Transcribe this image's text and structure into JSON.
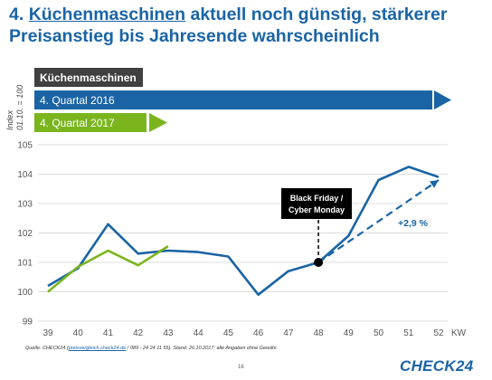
{
  "title": {
    "prefix": "4. ",
    "highlight": "Küchenmaschinen",
    "rest_line1": " aktuell noch günstig, stärkerer",
    "line2": "Preisanstieg bis Jahresende wahrscheinlich"
  },
  "legend": {
    "category_label": "Küchenmaschinen",
    "q4_2016": "4. Quartal 2016",
    "q4_2017": "4. Quartal 2017"
  },
  "colors": {
    "series_2016": "#1a64a5",
    "series_2017": "#7ab51d",
    "category_box": "#404040"
  },
  "annotation": {
    "line1": "Black Friday /",
    "line2": "Cyber Monday",
    "forecast_label": "+2,9 %"
  },
  "footer": {
    "prefix": "Quelle: CHECK24 (",
    "link": "preisvergleich.check24.de",
    "suffix": " / 089 - 24 24 11 55). Stand: 26.10.2017; alle Angaben ohne Gewähr"
  },
  "page_number": "16",
  "logo": "CHECK24",
  "chart_data": {
    "type": "line",
    "ylabel": "Index\n01.10. = 100",
    "xunit": "KW",
    "ylim": [
      99,
      105
    ],
    "yticks": [
      99,
      100,
      101,
      102,
      103,
      104,
      105
    ],
    "x": [
      39,
      40,
      41,
      42,
      43,
      44,
      45,
      46,
      47,
      48,
      49,
      50,
      51,
      52
    ],
    "grid": true,
    "series": [
      {
        "name": "4. Quartal 2016",
        "x": [
          39,
          40,
          41,
          42,
          43,
          44,
          45,
          46,
          47,
          48,
          49,
          50,
          51,
          52
        ],
        "values": [
          100.2,
          100.8,
          102.3,
          101.3,
          101.4,
          101.35,
          101.2,
          99.9,
          100.7,
          101.0,
          101.9,
          103.8,
          104.25,
          103.9
        ]
      },
      {
        "name": "4. Quartal 2017",
        "x": [
          39,
          40,
          41,
          42,
          43
        ],
        "values": [
          100.0,
          100.85,
          101.4,
          100.9,
          101.55
        ]
      },
      {
        "name": "+2,9 %",
        "style": "dashed",
        "x": [
          48,
          52
        ],
        "values": [
          101.0,
          103.8
        ]
      }
    ],
    "marker": {
      "x": 48,
      "y": 101.0,
      "label": "Black Friday / Cyber Monday"
    }
  }
}
